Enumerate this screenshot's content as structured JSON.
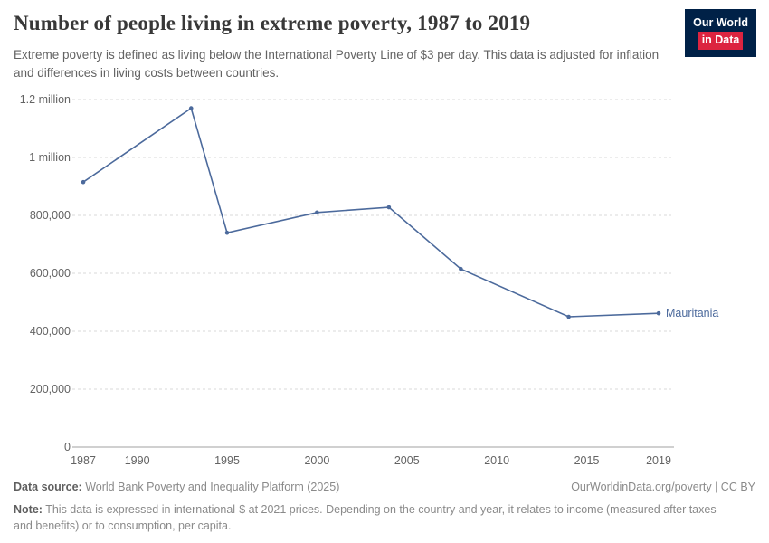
{
  "header": {
    "title": "Number of people living in extreme poverty, 1987 to 2019",
    "subtitle": "Extreme poverty is defined as living below the International Poverty Line of $3 per day. This data is adjusted for inflation and differences in living costs between countries.",
    "logo": {
      "line1": "Our World",
      "line2": "in Data",
      "bg": "#002147",
      "accent": "#dc2440"
    }
  },
  "chart_data": {
    "type": "line",
    "title": "Number of people living in extreme poverty, 1987 to 2019",
    "entity": "Mauritania",
    "x": [
      1987,
      1993,
      1995,
      2000,
      2004,
      2008,
      2014,
      2019
    ],
    "series": [
      {
        "name": "Mauritania",
        "color": "#4c6a9c",
        "values": [
          915000,
          1170000,
          740000,
          810000,
          828000,
          615000,
          450000,
          462000
        ]
      }
    ],
    "xlim": [
      1987,
      2019
    ],
    "ylim": [
      0,
      1200000
    ],
    "xticks": [
      {
        "v": 1987,
        "label": "1987"
      },
      {
        "v": 1990,
        "label": "1990"
      },
      {
        "v": 1995,
        "label": "1995"
      },
      {
        "v": 2000,
        "label": "2000"
      },
      {
        "v": 2005,
        "label": "2005"
      },
      {
        "v": 2010,
        "label": "2010"
      },
      {
        "v": 2015,
        "label": "2015"
      },
      {
        "v": 2019,
        "label": "2019"
      }
    ],
    "yticks": [
      {
        "v": 0,
        "label": "0"
      },
      {
        "v": 200000,
        "label": "200,000"
      },
      {
        "v": 400000,
        "label": "400,000"
      },
      {
        "v": 600000,
        "label": "600,000"
      },
      {
        "v": 800000,
        "label": "800,000"
      },
      {
        "v": 1000000,
        "label": "1 million"
      },
      {
        "v": 1200000,
        "label": "1.2 million"
      }
    ],
    "grid": "horizontal-dashed",
    "legend": "line-end-label",
    "grid_color": "#dadada",
    "axis_color": "#a0a0a0"
  },
  "footer": {
    "source_label": "Data source:",
    "source_text": "World Bank Poverty and Inequality Platform (2025)",
    "link": "OurWorldinData.org/poverty | CC BY",
    "note_label": "Note:",
    "note_text": "This data is expressed in international-$ at 2021 prices. Depending on the country and year, it relates to income (measured after taxes and benefits) or to consumption, per capita."
  }
}
